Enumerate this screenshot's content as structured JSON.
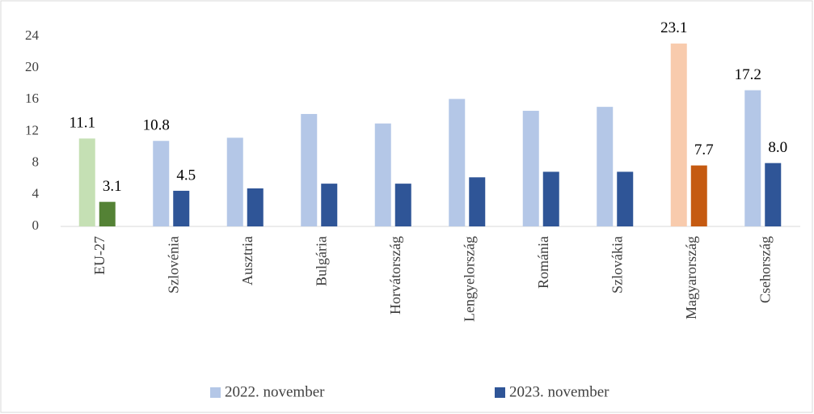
{
  "chart_data": {
    "type": "bar",
    "categories": [
      "EU-27",
      "Szlovénia",
      "Ausztria",
      "Bulgária",
      "Horvátország",
      "Lengyelország",
      "Románia",
      "Szlovákia",
      "Magyarország",
      "Csehország"
    ],
    "series": [
      {
        "name": "2022. november",
        "color": "#b4c7e7",
        "colors": [
          "#c5e0b4",
          "#b4c7e7",
          "#b4c7e7",
          "#b4c7e7",
          "#b4c7e7",
          "#b4c7e7",
          "#b4c7e7",
          "#b4c7e7",
          "#f8cbad",
          "#b4c7e7"
        ],
        "values": [
          11.1,
          10.8,
          11.2,
          14.2,
          13.0,
          16.1,
          14.6,
          15.1,
          23.1,
          17.2
        ],
        "value_labels": [
          "11.1",
          "10.8",
          null,
          null,
          null,
          null,
          null,
          null,
          "23.1",
          "17.2"
        ]
      },
      {
        "name": "2023. november",
        "color": "#2f5597",
        "colors": [
          "#548235",
          "#2f5597",
          "#2f5597",
          "#2f5597",
          "#2f5597",
          "#2f5597",
          "#2f5597",
          "#2f5597",
          "#c55a11",
          "#2f5597"
        ],
        "values": [
          3.1,
          4.5,
          4.8,
          5.4,
          5.4,
          6.2,
          6.9,
          6.9,
          7.7,
          8.0
        ],
        "value_labels": [
          "3.1",
          "4.5",
          null,
          null,
          null,
          null,
          null,
          null,
          "7.7",
          "8.0"
        ]
      }
    ],
    "ylim": [
      0,
      24
    ],
    "yticks": [
      0,
      4,
      8,
      12,
      16,
      20,
      24
    ],
    "grid": false
  }
}
